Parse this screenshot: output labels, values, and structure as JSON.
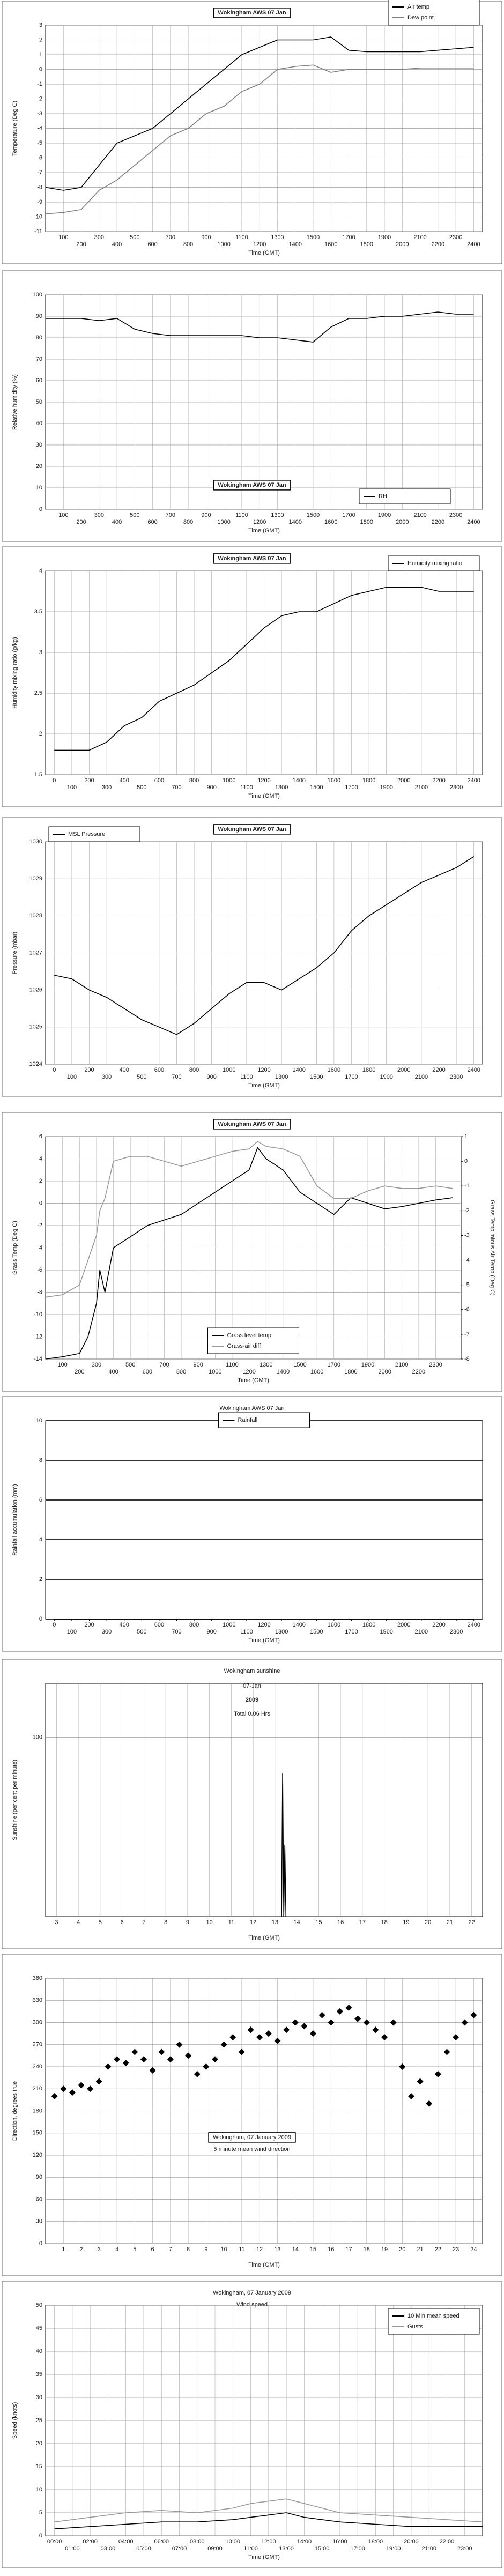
{
  "chart_data": [
    {
      "type": "line",
      "title": "Wokingham AWS 07 Jan",
      "ylabel": "Temperature (Deg C)",
      "xlabel": "Time (GMT)",
      "legend": "top-right",
      "grid": true,
      "x": [
        0,
        100,
        200,
        300,
        400,
        500,
        600,
        700,
        800,
        900,
        1000,
        1100,
        1200,
        1300,
        1400,
        1500,
        1600,
        1700,
        1800,
        1900,
        2000,
        2100,
        2200,
        2300,
        2400
      ],
      "series": [
        {
          "name": "Air temp",
          "color": "#000000",
          "values": [
            -8,
            -8.2,
            -8,
            -6.5,
            -5,
            -4.5,
            -4,
            -3,
            -2,
            -1,
            0,
            1,
            1.5,
            2,
            2,
            2,
            2.2,
            1.3,
            1.2,
            1.2,
            1.2,
            1.2,
            1.3,
            1.4,
            1.5
          ]
        },
        {
          "name": "Dew point",
          "color": "#808080",
          "values": [
            -9.8,
            -9.7,
            -9.5,
            -8.2,
            -7.5,
            -6.5,
            -5.5,
            -4.5,
            -4,
            -3,
            -2.5,
            -1.5,
            -1,
            0,
            0.2,
            0.3,
            -0.2,
            0,
            0,
            0,
            0,
            0.1,
            0.1,
            0.1,
            0.1
          ]
        }
      ],
      "xlim": [
        0,
        2450
      ],
      "xticks": [
        100,
        200,
        300,
        400,
        500,
        600,
        700,
        800,
        900,
        1000,
        1100,
        1200,
        1300,
        1400,
        1500,
        1600,
        1700,
        1800,
        1900,
        2000,
        2100,
        2200,
        2300,
        2400
      ],
      "ylim": [
        -11,
        3
      ],
      "yticks": [
        -11,
        -10,
        -9,
        -8,
        -7,
        -6,
        -5,
        -4,
        -3,
        -2,
        -1,
        0,
        1,
        2,
        3
      ]
    },
    {
      "type": "line",
      "title": "Wokingham AWS 07 Jan",
      "ylabel": "Relative humidity (%)",
      "xlabel": "Time (GMT)",
      "legend": "bottom-right",
      "grid": true,
      "x": [
        0,
        100,
        200,
        300,
        400,
        500,
        600,
        700,
        800,
        900,
        1000,
        1100,
        1200,
        1300,
        1400,
        1500,
        1600,
        1700,
        1800,
        1900,
        2000,
        2100,
        2200,
        2300,
        2400
      ],
      "series": [
        {
          "name": "RH",
          "color": "#000000",
          "values": [
            89,
            89,
            89,
            88,
            89,
            84,
            82,
            81,
            81,
            81,
            81,
            81,
            80,
            80,
            79,
            78,
            85,
            89,
            89,
            90,
            90,
            91,
            92,
            91,
            91
          ]
        }
      ],
      "xlim": [
        0,
        2450
      ],
      "xticks": [
        100,
        200,
        300,
        400,
        500,
        600,
        700,
        800,
        900,
        1000,
        1100,
        1200,
        1300,
        1400,
        1500,
        1600,
        1700,
        1800,
        1900,
        2000,
        2100,
        2200,
        2300,
        2400
      ],
      "ylim": [
        0,
        100
      ],
      "yticks": [
        0,
        10,
        20,
        30,
        40,
        50,
        60,
        70,
        80,
        90,
        100
      ]
    },
    {
      "type": "line",
      "title": "Wokingham AWS 07 Jan",
      "ylabel": "Humidity mixing ratio (g/kg)",
      "xlabel": "Time (GMT)",
      "legend": "top-right",
      "grid": true,
      "x": [
        0,
        100,
        200,
        300,
        400,
        500,
        600,
        700,
        800,
        900,
        1000,
        1100,
        1200,
        1300,
        1400,
        1500,
        1600,
        1700,
        1800,
        1900,
        2000,
        2100,
        2200,
        2300,
        2400
      ],
      "series": [
        {
          "name": "Humidity mixing ratio",
          "color": "#000000",
          "values": [
            1.8,
            1.8,
            1.8,
            1.9,
            2.1,
            2.2,
            2.4,
            2.5,
            2.6,
            2.75,
            2.9,
            3.1,
            3.3,
            3.45,
            3.5,
            3.5,
            3.6,
            3.7,
            3.75,
            3.8,
            3.8,
            3.8,
            3.75,
            3.75,
            3.75
          ]
        }
      ],
      "xlim": [
        -50,
        2450
      ],
      "xticks": [
        0,
        100,
        200,
        300,
        400,
        500,
        600,
        700,
        800,
        900,
        1000,
        1100,
        1200,
        1300,
        1400,
        1500,
        1600,
        1700,
        1800,
        1900,
        2000,
        2100,
        2200,
        2300,
        2400
      ],
      "ylim": [
        1.5,
        4
      ],
      "yticks": [
        1.5,
        2,
        2.5,
        3,
        3.5,
        4
      ]
    },
    {
      "type": "line",
      "title": "Wokingham AWS 07 Jan",
      "ylabel": "Pressure (mbar)",
      "xlabel": "Time (GMT)",
      "legend": "top-left",
      "grid": true,
      "x": [
        0,
        100,
        200,
        300,
        400,
        500,
        600,
        700,
        800,
        900,
        1000,
        1100,
        1200,
        1300,
        1400,
        1500,
        1600,
        1700,
        1800,
        1900,
        2000,
        2100,
        2200,
        2300,
        2400
      ],
      "series": [
        {
          "name": "MSL Pressure",
          "color": "#000000",
          "values": [
            1026.4,
            1026.3,
            1026,
            1025.8,
            1025.5,
            1025.2,
            1025,
            1024.8,
            1025.1,
            1025.5,
            1025.9,
            1026.2,
            1026.2,
            1026,
            1026.3,
            1026.6,
            1027,
            1027.6,
            1028,
            1028.3,
            1028.6,
            1028.9,
            1029.1,
            1029.3,
            1029.6
          ]
        }
      ],
      "xlim": [
        -50,
        2450
      ],
      "xticks": [
        0,
        100,
        200,
        300,
        400,
        500,
        600,
        700,
        800,
        900,
        1000,
        1100,
        1200,
        1300,
        1400,
        1500,
        1600,
        1700,
        1800,
        1900,
        2000,
        2100,
        2200,
        2300,
        2400
      ],
      "ylim": [
        1024,
        1030
      ],
      "yticks": [
        1024,
        1025,
        1026,
        1027,
        1028,
        1029,
        1030
      ]
    },
    {
      "type": "line",
      "title": "Wokingham AWS 07 Jan",
      "ylabel": "Grass Temp (Deg C)",
      "y2label": "Grass Temp minus Air Temp (Deg C)",
      "xlabel": "Time (GMT)",
      "legend": "bottom-center",
      "grid": true,
      "x": [
        0,
        100,
        200,
        250,
        300,
        320,
        350,
        400,
        500,
        600,
        700,
        800,
        900,
        1000,
        1100,
        1200,
        1250,
        1300,
        1400,
        1500,
        1600,
        1700,
        1800,
        1900,
        2000,
        2100,
        2200,
        2300,
        2400
      ],
      "series": [
        {
          "name": "Grass level temp",
          "color": "#000000",
          "values": [
            -14,
            -13.8,
            -13.5,
            -12,
            -9,
            -6,
            -8,
            -4,
            -3,
            -2,
            -1.5,
            -1,
            0,
            1,
            2,
            3,
            5,
            4,
            3,
            1,
            0,
            -1,
            0.5,
            0,
            -0.5,
            -0.3,
            0,
            0.3,
            0.5
          ]
        },
        {
          "name": "Grass-air diff",
          "color": "#999999",
          "axis": "y2",
          "values": [
            -5.5,
            -5.4,
            -5,
            -4,
            -3,
            -2,
            -1.5,
            0,
            0.2,
            0.2,
            0,
            -0.2,
            0,
            0.2,
            0.4,
            0.5,
            0.8,
            0.6,
            0.5,
            0.2,
            -1,
            -1.5,
            -1.5,
            -1.2,
            -1,
            -1.1,
            -1.1,
            -1,
            -1.1
          ]
        }
      ],
      "xlim": [
        0,
        2450
      ],
      "xticks": [
        100,
        200,
        300,
        400,
        500,
        600,
        700,
        800,
        900,
        1000,
        1100,
        1200,
        1300,
        1400,
        1500,
        1600,
        1700,
        1800,
        1900,
        2000,
        2100,
        2200,
        2300
      ],
      "ylim": [
        -14,
        6
      ],
      "yticks": [
        -14,
        -12,
        -10,
        -8,
        -6,
        -4,
        -2,
        0,
        2,
        4,
        6
      ],
      "y2lim": [
        -8,
        1
      ],
      "y2ticks": [
        -8,
        -7,
        -6,
        -5,
        -4,
        -3,
        -2,
        -1,
        0,
        1
      ]
    },
    {
      "type": "line",
      "title": "Wokingham AWS 07 Jan",
      "ylabel": "Rainfall accumulation (mm)",
      "xlabel": "Time (GMT)",
      "legend": "top-center",
      "grid": true,
      "x": [
        0,
        2400
      ],
      "series": [
        {
          "name": "Rainfall",
          "color": "#000000",
          "values": [
            0,
            0
          ]
        }
      ],
      "xlim": [
        -50,
        2450
      ],
      "xticks": [
        0,
        100,
        200,
        300,
        400,
        500,
        600,
        700,
        800,
        900,
        1000,
        1100,
        1200,
        1300,
        1400,
        1500,
        1600,
        1700,
        1800,
        1900,
        2000,
        2100,
        2200,
        2300,
        2400
      ],
      "ylim": [
        0,
        10
      ],
      "yticks": [
        0,
        2,
        4,
        6,
        8,
        10
      ]
    },
    {
      "type": "line",
      "title": "Wokingham sunshine",
      "annotations": [
        "07-Jan",
        "2009",
        "Total 0.06 Hrs"
      ],
      "ylabel": "Sunshine (per cent per minute)",
      "xlabel": "Time (GMT)",
      "grid": true,
      "x": [
        13.3,
        13.35,
        13.4,
        13.45,
        13.5
      ],
      "series": [
        {
          "color": "#000000",
          "values": [
            0,
            80,
            0,
            40,
            0
          ]
        }
      ],
      "xlim": [
        2.5,
        22.5
      ],
      "xticks": [
        3,
        4,
        5,
        6,
        7,
        8,
        9,
        10,
        11,
        12,
        13,
        14,
        15,
        16,
        17,
        18,
        19,
        20,
        21,
        22
      ],
      "ylim": [
        0,
        130
      ],
      "yticks": [
        100
      ]
    },
    {
      "type": "scatter",
      "title": "Wokingham,  07 January 2009",
      "subtitle": "5 minute mean wind direction",
      "ylabel": "Direction, degrees true",
      "xlabel": "Time (GMT)",
      "grid": true,
      "x": [
        0.5,
        1,
        1.5,
        2,
        2.5,
        3,
        3.5,
        4,
        4.5,
        5,
        5.5,
        6,
        6.5,
        7,
        7.5,
        8,
        8.5,
        9,
        9.5,
        10,
        10.5,
        11,
        11.5,
        12,
        12.5,
        13,
        13.5,
        14,
        14.5,
        15,
        15.5,
        16,
        16.5,
        17,
        17.5,
        18,
        18.5,
        19,
        19.5,
        20,
        20.5,
        21,
        21.5,
        22,
        22.5,
        23,
        23.5,
        24
      ],
      "series": [
        {
          "color": "#000000",
          "values": [
            200,
            210,
            205,
            215,
            210,
            220,
            240,
            250,
            245,
            260,
            250,
            235,
            260,
            250,
            270,
            255,
            230,
            240,
            250,
            270,
            280,
            260,
            290,
            280,
            285,
            275,
            290,
            300,
            295,
            285,
            310,
            300,
            315,
            320,
            305,
            300,
            290,
            280,
            300,
            240,
            200,
            220,
            190,
            230,
            260,
            280,
            300,
            310
          ]
        }
      ],
      "xlim": [
        0,
        24.5
      ],
      "xticks": [
        1,
        2,
        3,
        4,
        5,
        6,
        7,
        8,
        9,
        10,
        11,
        12,
        13,
        14,
        15,
        16,
        17,
        18,
        19,
        20,
        21,
        22,
        23,
        24
      ],
      "ylim": [
        0,
        360
      ],
      "yticks": [
        0,
        30,
        60,
        90,
        120,
        150,
        180,
        210,
        240,
        270,
        300,
        330,
        360
      ]
    },
    {
      "type": "line",
      "title": "Wokingham,  07 January 2009",
      "subtitle": "Wind speed",
      "ylabel": "Speed (knots)",
      "xlabel": "Time (GMT)",
      "legend": "top-right",
      "grid": true,
      "x": [
        0,
        2,
        4,
        6,
        8,
        10,
        11,
        12,
        13,
        14,
        15,
        16,
        18,
        20,
        22,
        24
      ],
      "series": [
        {
          "name": "10 Min mean speed",
          "color": "#000000",
          "values": [
            1.5,
            2,
            2.5,
            3,
            3,
            3.5,
            4,
            4.5,
            5,
            4,
            3.5,
            3,
            2.5,
            2,
            2,
            2
          ]
        },
        {
          "name": "Gusts",
          "color": "#999999",
          "values": [
            3,
            4,
            5,
            5.5,
            5,
            6,
            7,
            7.5,
            8,
            7,
            6,
            5,
            4.5,
            4,
            3.5,
            3
          ]
        }
      ],
      "xlim": [
        -0.5,
        24
      ],
      "xticks": [
        {
          "value": 0,
          "label": "00:00"
        },
        {
          "value": 1,
          "label": "01:00"
        },
        {
          "value": 2,
          "label": "02:00"
        },
        {
          "value": 3,
          "label": "03:00"
        },
        {
          "value": 4,
          "label": "04:00"
        },
        {
          "value": 5,
          "label": "05:00"
        },
        {
          "value": 6,
          "label": "06:00"
        },
        {
          "value": 7,
          "label": "07:00"
        },
        {
          "value": 8,
          "label": "08:00"
        },
        {
          "value": 9,
          "label": "09:00"
        },
        {
          "value": 10,
          "label": "10:00"
        },
        {
          "value": 11,
          "label": "11:00"
        },
        {
          "value": 12,
          "label": "12:00"
        },
        {
          "value": 13,
          "label": "13:00"
        },
        {
          "value": 14,
          "label": "14:00"
        },
        {
          "value": 15,
          "label": "15:00"
        },
        {
          "value": 16,
          "label": "16:00"
        },
        {
          "value": 17,
          "label": "17:00"
        },
        {
          "value": 18,
          "label": "18:00"
        },
        {
          "value": 19,
          "label": "19:00"
        },
        {
          "value": 20,
          "label": "20:00"
        },
        {
          "value": 21,
          "label": "21:00"
        },
        {
          "value": 22,
          "label": "22:00"
        },
        {
          "value": 23,
          "label": "23:00"
        }
      ],
      "ylim": [
        0,
        50
      ],
      "yticks": [
        0,
        5,
        10,
        15,
        20,
        25,
        30,
        35,
        40,
        45,
        50
      ]
    }
  ]
}
